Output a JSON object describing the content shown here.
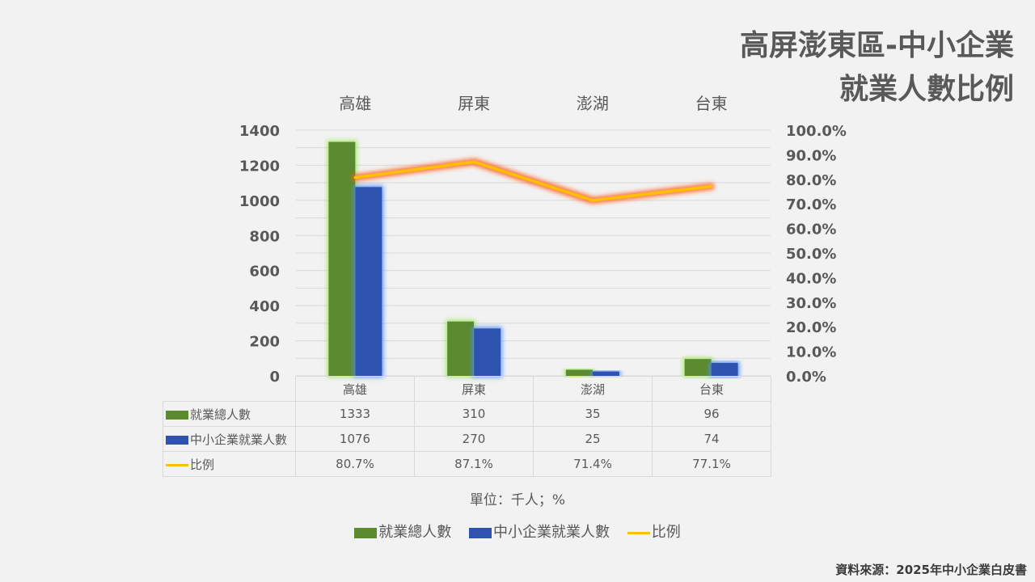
{
  "title": {
    "line1": "高屏澎東區-中小企業",
    "line2": "就業人數比例"
  },
  "chart_data": {
    "type": "bar",
    "categories": [
      "高雄",
      "屏東",
      "澎湖",
      "台東"
    ],
    "series": [
      {
        "name": "就業總人數",
        "type": "bar",
        "values": [
          1333,
          310,
          35,
          96
        ],
        "labels": [
          "1333",
          "310",
          "35",
          "96"
        ],
        "color": "#5b8a2f"
      },
      {
        "name": "中小企業就業人數",
        "type": "bar",
        "values": [
          1076,
          270,
          25,
          74
        ],
        "labels": [
          "1076",
          "270",
          "25",
          "74"
        ],
        "color": "#2e52ae"
      },
      {
        "name": "比例",
        "type": "line",
        "axis": "right",
        "values": [
          80.7,
          87.1,
          71.4,
          77.1
        ],
        "labels": [
          "80.7%",
          "87.1%",
          "71.4%",
          "77.1%"
        ],
        "color": "#ffc000"
      }
    ],
    "ylim_left": [
      0,
      1400
    ],
    "yticks_left": [
      "0",
      "200",
      "400",
      "600",
      "800",
      "1000",
      "1200",
      "1400"
    ],
    "ylim_right": [
      0,
      100
    ],
    "yticks_right": [
      "0.0%",
      "10.0%",
      "20.0%",
      "30.0%",
      "40.0%",
      "50.0%",
      "60.0%",
      "70.0%",
      "80.0%",
      "90.0%",
      "100.0%"
    ],
    "grid": true,
    "legend": "bottom",
    "data_table": true
  },
  "unit_label": "單位：千人；%",
  "source": "資料來源：2025年中小企業白皮書"
}
